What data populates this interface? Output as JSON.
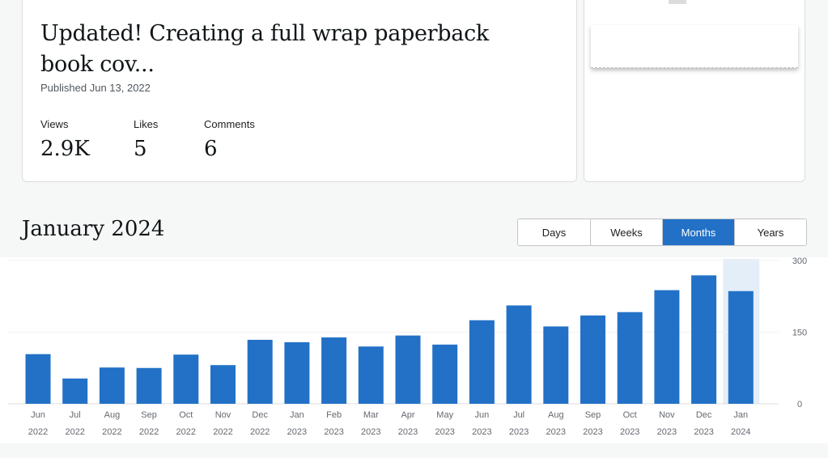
{
  "post": {
    "title": "Updated! Creating a full wrap paperback book cov...",
    "published": "Published Jun 13, 2022",
    "stats": [
      {
        "label": "Views",
        "value": "2.9K"
      },
      {
        "label": "Likes",
        "value": "5"
      },
      {
        "label": "Comments",
        "value": "6"
      }
    ]
  },
  "period": {
    "title": "January 2024",
    "tabs": [
      "Days",
      "Weeks",
      "Months",
      "Years"
    ],
    "active_tab": "Months"
  },
  "colors": {
    "bar": "#2271c7",
    "highlight": "#e4eef8",
    "active_tab": "#2271c7"
  },
  "chart_data": {
    "type": "bar",
    "categories": [
      "Jun 2022",
      "Jul 2022",
      "Aug 2022",
      "Sep 2022",
      "Oct 2022",
      "Nov 2022",
      "Dec 2022",
      "Jan 2023",
      "Feb 2023",
      "Mar 2023",
      "Apr 2023",
      "May 2023",
      "Jun 2023",
      "Jul 2023",
      "Aug 2023",
      "Sep 2023",
      "Oct 2023",
      "Nov 2023",
      "Dec 2023",
      "Jan 2024"
    ],
    "months": [
      "Jun",
      "Jul",
      "Aug",
      "Sep",
      "Oct",
      "Nov",
      "Dec",
      "Jan",
      "Feb",
      "Mar",
      "Apr",
      "May",
      "Jun",
      "Jul",
      "Aug",
      "Sep",
      "Oct",
      "Nov",
      "Dec",
      "Jan"
    ],
    "years": [
      "2022",
      "2022",
      "2022",
      "2022",
      "2022",
      "2022",
      "2022",
      "2023",
      "2023",
      "2023",
      "2023",
      "2023",
      "2023",
      "2023",
      "2023",
      "2023",
      "2023",
      "2023",
      "2023",
      "2024"
    ],
    "values": [
      104,
      53,
      76,
      75,
      103,
      81,
      134,
      129,
      139,
      120,
      143,
      124,
      175,
      206,
      162,
      185,
      192,
      238,
      269,
      236
    ],
    "selected_index": 19,
    "ylim": [
      0,
      300
    ],
    "yticks": [
      "300",
      "150",
      "0"
    ],
    "grid": true
  }
}
